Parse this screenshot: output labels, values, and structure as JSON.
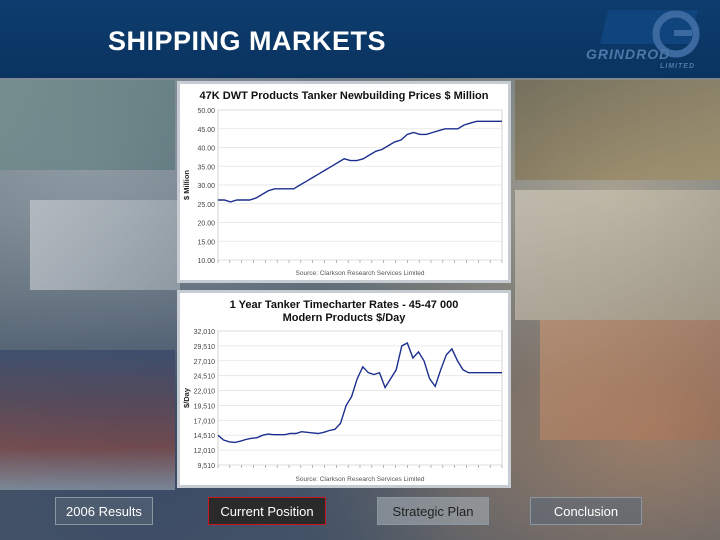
{
  "header": {
    "title": "SHIPPING MARKETS",
    "logo_text": "GRINDROD",
    "logo_sub": "LIMITED"
  },
  "colors": {
    "header_bg": "#0a3360",
    "line": "#1c2f8f",
    "active_border": "#c9151b"
  },
  "nav": [
    {
      "label": "2006 Results",
      "active": false
    },
    {
      "label": "Current Position",
      "active": true
    },
    {
      "label": "Strategic Plan",
      "active": false
    },
    {
      "label": "Conclusion",
      "active": false
    }
  ],
  "chart_data": [
    {
      "type": "line",
      "title": "47K DWT Products Tanker Newbuilding Prices $ Million",
      "ylabel": "$ Million",
      "source": "Source: Clarkson Research Services Limited",
      "ylim": [
        10,
        50
      ],
      "yticks": [
        "50.00",
        "45.00",
        "40.00",
        "35.00",
        "30.00",
        "25.00",
        "20.00",
        "15.00",
        "10.00"
      ],
      "ytick_values": [
        50,
        45,
        40,
        35,
        30,
        25,
        20,
        15,
        10
      ],
      "series": [
        {
          "x": [
            0,
            4,
            8,
            12,
            16,
            20,
            24,
            28,
            32,
            36,
            40,
            44,
            48,
            52,
            56,
            60,
            64,
            68,
            72,
            76,
            80,
            84,
            88,
            92,
            96,
            100,
            104,
            108,
            112,
            116,
            120,
            124,
            128,
            132,
            136,
            140,
            144,
            148,
            152,
            156,
            160,
            164,
            168,
            172,
            176,
            180
          ],
          "values": [
            26,
            26,
            25.5,
            26,
            26,
            26,
            26.5,
            27.5,
            28.5,
            29,
            29,
            29,
            29,
            30,
            31,
            32,
            33,
            34,
            35,
            36,
            37,
            36.5,
            36.5,
            37,
            38,
            39,
            39.5,
            40.5,
            41.5,
            42,
            43.5,
            44,
            43.5,
            43.5,
            44,
            44.5,
            45,
            45,
            45,
            46,
            46.5,
            47,
            47,
            47,
            47,
            47
          ]
        }
      ]
    },
    {
      "type": "line",
      "title": "1 Year Tanker Timecharter Rates - 45-47 000 Modern Products $/Day",
      "ylabel": "$/Day",
      "source": "Source: Clarkson Research Services Limited",
      "ylim": [
        9510,
        32010
      ],
      "yticks": [
        "32,010",
        "29,510",
        "27,010",
        "24,510",
        "22,010",
        "19,510",
        "17,010",
        "14,510",
        "12,010",
        "9,510"
      ],
      "ytick_values": [
        32010,
        29510,
        27010,
        24510,
        22010,
        19510,
        17010,
        14510,
        12010,
        9510
      ],
      "series": [
        {
          "x": [
            0,
            4,
            8,
            12,
            16,
            20,
            24,
            28,
            32,
            36,
            40,
            44,
            48,
            52,
            56,
            60,
            64,
            68,
            72,
            76,
            80,
            84,
            88,
            92,
            96,
            100,
            104,
            108,
            112,
            116,
            120,
            124,
            128,
            132,
            136,
            140,
            144,
            148,
            152,
            156,
            160,
            164,
            168,
            172,
            176,
            180,
            184,
            188,
            192,
            196,
            200,
            204
          ],
          "values": [
            14500,
            13700,
            13400,
            13300,
            13500,
            13800,
            14000,
            14100,
            14500,
            14700,
            14600,
            14600,
            14600,
            14800,
            14800,
            15100,
            15000,
            14900,
            14800,
            15000,
            15300,
            15500,
            16500,
            19500,
            21000,
            24000,
            26000,
            25000,
            24700,
            25000,
            22500,
            24000,
            25500,
            29500,
            30000,
            27500,
            28500,
            27000,
            24000,
            22700,
            25500,
            28000,
            29000,
            27000,
            25500,
            25000,
            25000,
            25000,
            25000,
            25000,
            25000,
            25000
          ]
        }
      ]
    }
  ]
}
